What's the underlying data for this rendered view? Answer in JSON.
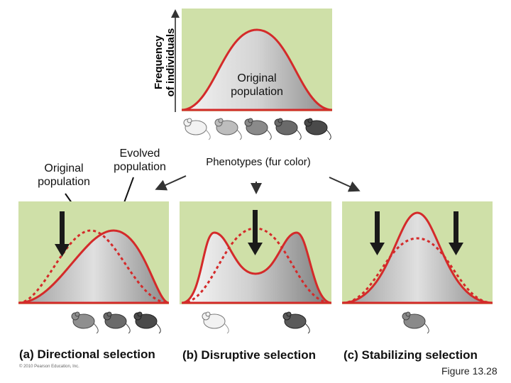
{
  "top_panel": {
    "y_axis_label_line1": "Frequency",
    "y_axis_label_line2": "of individuals",
    "curve_label_line1": "Original",
    "curve_label_line2": "population",
    "x_axis_label": "Phenotypes (fur color)"
  },
  "legend": {
    "original_line1": "Original",
    "original_line2": "population",
    "evolved_line1": "Evolved",
    "evolved_line2": "population"
  },
  "panels": [
    {
      "caption": "(a) Directional selection"
    },
    {
      "caption": "(b) Disruptive selection"
    },
    {
      "caption": "(c) Stabilizing selection"
    }
  ],
  "footer": {
    "copyright": "© 2010 Pearson Education, Inc.",
    "figure_number": "Figure 13.28"
  },
  "colors": {
    "panel_background": "#cfe0a8",
    "curve_red": "#d42a2a",
    "arrow_black": "#1a1a1a"
  }
}
